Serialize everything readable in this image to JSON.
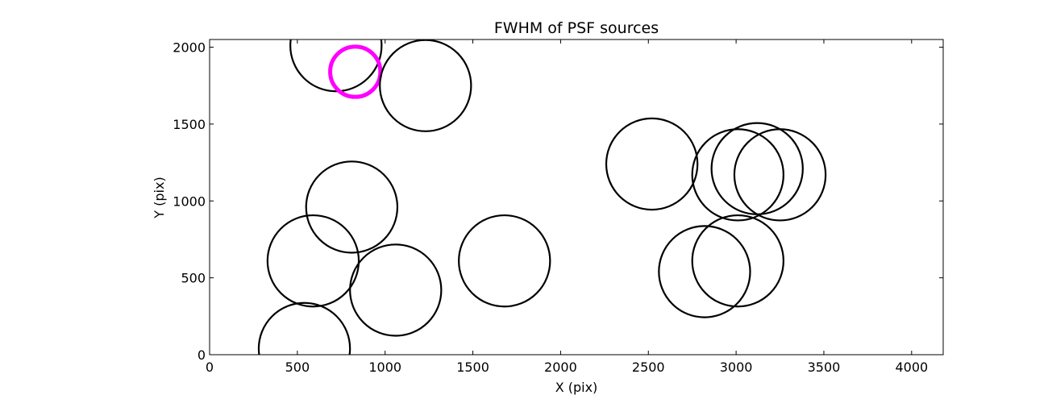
{
  "chart_data": {
    "type": "scatter",
    "title": "FWHM of PSF sources",
    "xlabel": "X (pix)",
    "ylabel": "Y (pix)",
    "xlim": [
      0,
      4180
    ],
    "ylim": [
      0,
      2050
    ],
    "xticks": [
      0,
      500,
      1000,
      1500,
      2000,
      2500,
      3000,
      3500,
      4000
    ],
    "yticks": [
      0,
      500,
      1000,
      1500,
      2000
    ],
    "grid": false,
    "marker": "circle",
    "circle_radius_pix": 260,
    "colors": {
      "normal": "#000000",
      "highlight": "#ff00ff"
    },
    "points": [
      {
        "x": 720,
        "y": 2010,
        "highlight": false
      },
      {
        "x": 830,
        "y": 1840,
        "highlight": true
      },
      {
        "x": 1230,
        "y": 1750,
        "highlight": false
      },
      {
        "x": 2520,
        "y": 1240,
        "highlight": false
      },
      {
        "x": 3010,
        "y": 1170,
        "highlight": false
      },
      {
        "x": 3120,
        "y": 1210,
        "highlight": false
      },
      {
        "x": 3250,
        "y": 1170,
        "highlight": false
      },
      {
        "x": 810,
        "y": 960,
        "highlight": false
      },
      {
        "x": 590,
        "y": 610,
        "highlight": false
      },
      {
        "x": 1060,
        "y": 420,
        "highlight": false
      },
      {
        "x": 1680,
        "y": 610,
        "highlight": false
      },
      {
        "x": 3010,
        "y": 610,
        "highlight": false
      },
      {
        "x": 2820,
        "y": 540,
        "highlight": false
      },
      {
        "x": 540,
        "y": 40,
        "highlight": false
      }
    ]
  }
}
